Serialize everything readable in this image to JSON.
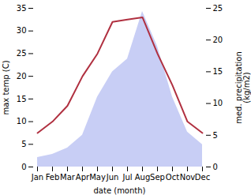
{
  "chart_data": {
    "type": "line",
    "categories": [
      "Jan",
      "Feb",
      "Mar",
      "Apr",
      "May",
      "Jun",
      "Jul",
      "Aug",
      "Sep",
      "Oct",
      "Nov",
      "Dec"
    ],
    "series": [
      {
        "type": "area",
        "axis": "y2",
        "color": "#c8cef5",
        "values": [
          1.5,
          2.0,
          3.0,
          5.0,
          11.0,
          15.0,
          17.0,
          24.5,
          19.0,
          11.0,
          5.5,
          3.5
        ]
      },
      {
        "type": "line",
        "color": "#b03040",
        "values": [
          7.5,
          10.0,
          13.5,
          20.0,
          25.0,
          32.0,
          32.5,
          33.0,
          25.0,
          18.0,
          10.0,
          7.5
        ]
      }
    ],
    "xlabel": "date (month)",
    "ylabel": "max temp (C)",
    "y2label": "med. precipitation\n(kg/m2)",
    "ylim": [
      0,
      35
    ],
    "yticks": [
      0,
      5,
      10,
      15,
      20,
      25,
      30,
      35
    ],
    "y2lim": [
      0,
      25
    ],
    "y2ticks": [
      0,
      5,
      10,
      15,
      20,
      25
    ],
    "grid": false
  }
}
